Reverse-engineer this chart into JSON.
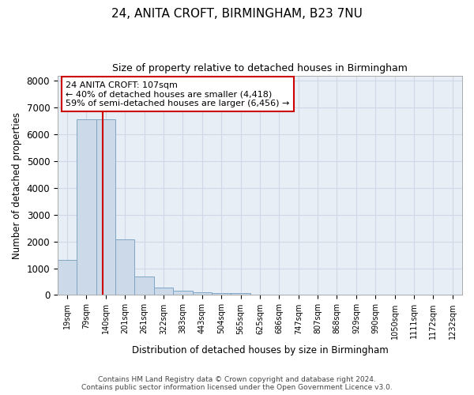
{
  "title": "24, ANITA CROFT, BIRMINGHAM, B23 7NU",
  "subtitle": "Size of property relative to detached houses in Birmingham",
  "xlabel": "Distribution of detached houses by size in Birmingham",
  "ylabel": "Number of detached properties",
  "footer_line1": "Contains HM Land Registry data © Crown copyright and database right 2024.",
  "footer_line2": "Contains public sector information licensed under the Open Government Licence v3.0.",
  "bin_labels": [
    "19sqm",
    "79sqm",
    "140sqm",
    "201sqm",
    "261sqm",
    "322sqm",
    "383sqm",
    "443sqm",
    "504sqm",
    "565sqm",
    "625sqm",
    "686sqm",
    "747sqm",
    "807sqm",
    "868sqm",
    "929sqm",
    "990sqm",
    "1050sqm",
    "1111sqm",
    "1172sqm",
    "1232sqm"
  ],
  "bar_values": [
    1300,
    6550,
    6550,
    2080,
    680,
    280,
    150,
    100,
    60,
    60,
    0,
    0,
    0,
    0,
    0,
    0,
    0,
    0,
    0,
    0,
    0
  ],
  "bar_color": "#ccd9e8",
  "bar_edge_color": "#7ea6c4",
  "property_line_x": 1.85,
  "property_line_color": "#cc0000",
  "annotation_line1": "24 ANITA CROFT: 107sqm",
  "annotation_line2": "← 40% of detached houses are smaller (4,418)",
  "annotation_line3": "59% of semi-detached houses are larger (6,456) →",
  "annotation_box_color": "#cc0000",
  "ylim": [
    0,
    8200
  ],
  "yticks": [
    0,
    1000,
    2000,
    3000,
    4000,
    5000,
    6000,
    7000,
    8000
  ],
  "grid_color": "#d0d8e8",
  "background_color": "#e8eef5",
  "title_fontsize": 11,
  "subtitle_fontsize": 9,
  "footer_fontsize": 6.5
}
